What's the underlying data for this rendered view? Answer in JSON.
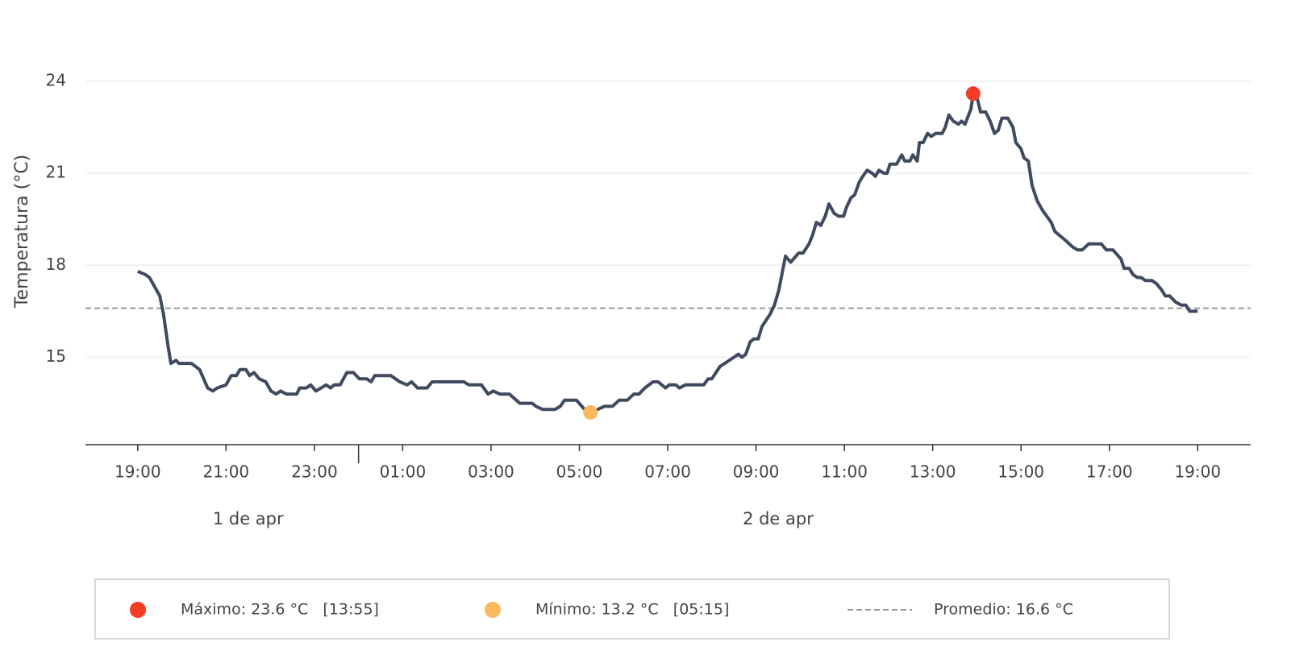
{
  "chart_data": {
    "type": "line",
    "y_label": "Temperatura (°C)",
    "xlim": [
      "04-01T17:49",
      "04-02T20:12"
    ],
    "ylim": [
      12.15,
      25.6
    ],
    "yticks": [
      15,
      18,
      21,
      24
    ],
    "grid": true,
    "xticks": [
      {
        "value": "04-01T19:00",
        "label": "19:00"
      },
      {
        "value": "04-01T21:00",
        "label": "21:00"
      },
      {
        "value": "04-01T23:00",
        "label": "23:00"
      },
      {
        "value": "04-02T01:00",
        "label": "01:00"
      },
      {
        "value": "04-02T03:00",
        "label": "03:00"
      },
      {
        "value": "04-02T05:00",
        "label": "05:00"
      },
      {
        "value": "04-02T07:00",
        "label": "07:00"
      },
      {
        "value": "04-02T09:00",
        "label": "09:00"
      },
      {
        "value": "04-02T11:00",
        "label": "11:00"
      },
      {
        "value": "04-02T13:00",
        "label": "13:00"
      },
      {
        "value": "04-02T15:00",
        "label": "15:00"
      },
      {
        "value": "04-02T17:00",
        "label": "17:00"
      },
      {
        "value": "04-02T19:00",
        "label": "19:00"
      }
    ],
    "x_groups": [
      {
        "label": "1 de apr",
        "range": [
          "04-01T19:00",
          "04-02T00:00"
        ]
      },
      {
        "label": "2 de apr",
        "range": [
          "04-02T00:00",
          "04-02T19:00"
        ]
      }
    ],
    "x": [
      "04-01T19:00",
      "04-01T19:10",
      "04-01T19:16",
      "04-01T19:23",
      "04-01T19:30",
      "04-01T19:35",
      "04-01T19:41",
      "04-01T19:45",
      "04-01T19:52",
      "04-01T19:56",
      "04-01T20:13",
      "04-01T20:24",
      "04-01T20:35",
      "04-01T20:42",
      "04-01T20:48",
      "04-01T21:00",
      "04-01T21:07",
      "04-01T21:14",
      "04-01T21:19",
      "04-01T21:27",
      "04-01T21:32",
      "04-01T21:38",
      "04-01T21:45",
      "04-01T21:54",
      "04-01T22:01",
      "04-01T22:08",
      "04-01T22:14",
      "04-01T22:22",
      "04-01T22:36",
      "04-01T22:40",
      "04-01T22:49",
      "04-01T22:55",
      "04-01T23:02",
      "04-01T23:09",
      "04-01T23:16",
      "04-01T23:22",
      "04-01T23:27",
      "04-01T23:35",
      "04-01T23:44",
      "04-01T23:53",
      "04-02T00:01",
      "04-02T00:11",
      "04-02T00:17",
      "04-02T00:22",
      "04-02T00:44",
      "04-02T00:56",
      "04-02T01:06",
      "04-02T01:12",
      "04-02T01:20",
      "04-02T01:33",
      "04-02T01:40",
      "04-02T02:23",
      "04-02T02:30",
      "04-02T02:47",
      "04-02T02:56",
      "04-02T03:03",
      "04-02T03:12",
      "04-02T03:25",
      "04-02T03:39",
      "04-02T03:56",
      "04-02T04:01",
      "04-02T04:10",
      "04-02T04:27",
      "04-02T04:34",
      "04-02T04:40",
      "04-02T04:56",
      "04-02T05:07",
      "04-02T05:15",
      "04-02T05:25",
      "04-02T05:34",
      "04-02T05:45",
      "04-02T05:54",
      "04-02T06:05",
      "04-02T06:14",
      "04-02T06:21",
      "04-02T06:29",
      "04-02T06:40",
      "04-02T06:47",
      "04-02T06:57",
      "04-02T07:02",
      "04-02T07:11",
      "04-02T07:16",
      "04-02T07:24",
      "04-02T07:49",
      "04-02T07:55",
      "04-02T08:00",
      "04-02T08:11",
      "04-02T08:30",
      "04-02T08:36",
      "04-02T08:41",
      "04-02T08:46",
      "04-02T08:52",
      "04-02T08:57",
      "04-02T09:03",
      "04-02T09:08",
      "04-02T09:19",
      "04-02T09:25",
      "04-02T09:31",
      "04-02T09:40",
      "04-02T09:47",
      "04-02T09:58",
      "04-02T10:04",
      "04-02T10:12",
      "04-02T10:17",
      "04-02T10:22",
      "04-02T10:28",
      "04-02T10:34",
      "04-02T10:39",
      "04-02T10:46",
      "04-02T10:52",
      "04-02T10:59",
      "04-02T11:03",
      "04-02T11:09",
      "04-02T11:14",
      "04-02T11:20",
      "04-02T11:25",
      "04-02T11:31",
      "04-02T11:38",
      "04-02T11:42",
      "04-02T11:47",
      "04-02T11:54",
      "04-02T11:58",
      "04-02T12:02",
      "04-02T12:11",
      "04-02T12:18",
      "04-02T12:22",
      "04-02T12:29",
      "04-02T12:33",
      "04-02T12:39",
      "04-02T12:42",
      "04-02T12:47",
      "04-02T12:53",
      "04-02T12:58",
      "04-02T13:04",
      "04-02T13:13",
      "04-02T13:17",
      "04-02T13:22",
      "04-02T13:28",
      "04-02T13:35",
      "04-02T13:39",
      "04-02T13:44",
      "04-02T13:52",
      "04-02T13:55",
      "04-02T14:01",
      "04-02T14:05",
      "04-02T14:12",
      "04-02T14:18",
      "04-02T14:24",
      "04-02T14:29",
      "04-02T14:34",
      "04-02T14:42",
      "04-02T14:49",
      "04-02T14:53",
      "04-02T15:00",
      "04-02T15:04",
      "04-02T15:10",
      "04-02T15:15",
      "04-02T15:22",
      "04-02T15:29",
      "04-02T15:35",
      "04-02T15:41",
      "04-02T15:46",
      "04-02T16:01",
      "04-02T16:10",
      "04-02T16:17",
      "04-02T16:23",
      "04-02T16:32",
      "04-02T16:49",
      "04-02T16:56",
      "04-02T17:05",
      "04-02T17:16",
      "04-02T17:20",
      "04-02T17:27",
      "04-02T17:32",
      "04-02T17:38",
      "04-02T17:43",
      "04-02T17:49",
      "04-02T17:58",
      "04-02T18:04",
      "04-02T18:11",
      "04-02T18:16",
      "04-02T18:22",
      "04-02T18:30",
      "04-02T18:38",
      "04-02T18:44",
      "04-02T18:49",
      "04-02T19:00"
    ],
    "series": [
      {
        "color": "#404a5f",
        "values": [
          17.8,
          17.7,
          17.6,
          17.3,
          17.0,
          16.4,
          15.4,
          14.8,
          14.9,
          14.8,
          14.8,
          14.6,
          14.0,
          13.9,
          14.0,
          14.1,
          14.4,
          14.4,
          14.6,
          14.6,
          14.4,
          14.5,
          14.3,
          14.2,
          13.9,
          13.8,
          13.9,
          13.8,
          13.8,
          14.0,
          14.0,
          14.1,
          13.9,
          14.0,
          14.1,
          14.0,
          14.1,
          14.1,
          14.5,
          14.5,
          14.3,
          14.3,
          14.2,
          14.4,
          14.4,
          14.2,
          14.1,
          14.2,
          14.0,
          14.0,
          14.2,
          14.2,
          14.1,
          14.1,
          13.8,
          13.9,
          13.8,
          13.8,
          13.5,
          13.5,
          13.4,
          13.3,
          13.3,
          13.4,
          13.6,
          13.6,
          13.3,
          13.2,
          13.3,
          13.4,
          13.4,
          13.6,
          13.6,
          13.8,
          13.8,
          14.0,
          14.2,
          14.2,
          14.0,
          14.1,
          14.1,
          14.0,
          14.1,
          14.1,
          14.3,
          14.3,
          14.7,
          15.0,
          15.1,
          15.0,
          15.1,
          15.5,
          15.6,
          15.6,
          16.0,
          16.4,
          16.7,
          17.2,
          18.3,
          18.1,
          18.4,
          18.4,
          18.7,
          19.0,
          19.4,
          19.3,
          19.6,
          20.0,
          19.7,
          19.6,
          19.6,
          19.9,
          20.2,
          20.3,
          20.7,
          20.9,
          21.1,
          21.0,
          20.9,
          21.1,
          21.0,
          21.0,
          21.3,
          21.3,
          21.6,
          21.4,
          21.4,
          21.6,
          21.4,
          22.0,
          22.0,
          22.3,
          22.2,
          22.3,
          22.3,
          22.5,
          22.9,
          22.7,
          22.6,
          22.7,
          22.6,
          23.1,
          23.6,
          23.4,
          23.0,
          23.0,
          22.7,
          22.3,
          22.4,
          22.8,
          22.8,
          22.5,
          22.0,
          21.8,
          21.5,
          21.4,
          20.6,
          20.1,
          19.8,
          19.6,
          19.4,
          19.1,
          18.8,
          18.6,
          18.5,
          18.5,
          18.7,
          18.7,
          18.5,
          18.5,
          18.2,
          17.9,
          17.9,
          17.7,
          17.6,
          17.6,
          17.5,
          17.5,
          17.4,
          17.2,
          17.0,
          17.0,
          16.8,
          16.7,
          16.7,
          16.5,
          16.5
        ]
      }
    ],
    "markers": [
      {
        "x": "04-02T13:55",
        "value": 23.6,
        "color": "#f53d26",
        "label": "Máximo: 23.6 °C   [13:55]"
      },
      {
        "x": "04-02T05:15",
        "value": 13.2,
        "color": "#fbb95e",
        "label": "Mínimo: 13.2 °C   [05:15]"
      }
    ],
    "mean": {
      "value": 16.6,
      "color": "#999999",
      "label": "Promedio: 16.6 °C"
    }
  }
}
